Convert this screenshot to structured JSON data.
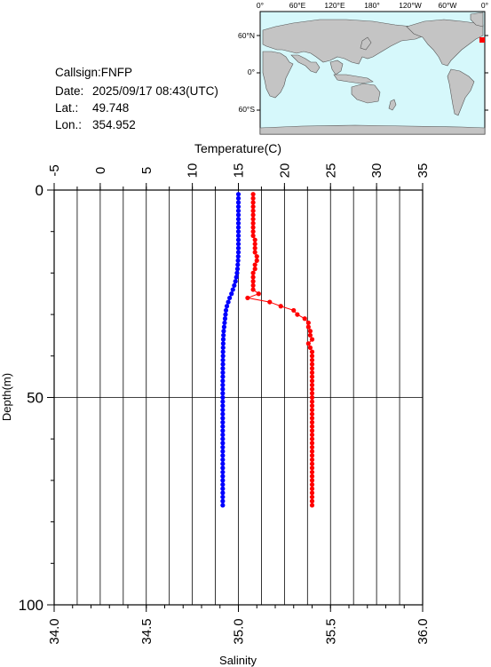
{
  "station": {
    "callsign_label": "Callsign:",
    "callsign": "FNFP",
    "date_label": "Date:",
    "date": "2025/09/17 08:43(UTC)",
    "lat_label": "Lat.:",
    "lat": "49.748",
    "lon_label": "Lon.:",
    "lon": "354.952"
  },
  "map": {
    "top_ticks": [
      "0°",
      "60°E",
      "120°E",
      "180°",
      "120°W",
      "60°W",
      "0°"
    ],
    "lat_ticks": [
      "60°N",
      "0°",
      "60°S"
    ],
    "ocean_color": "#d6f8fb",
    "land_color": "#c4c4c4",
    "marker_color": "#ff0000"
  },
  "chart_data": {
    "type": "line",
    "top_axis_label": "Temperature(C)",
    "temperature_ticks": [
      "-5",
      "0",
      "5",
      "10",
      "15",
      "20",
      "25",
      "30",
      "35"
    ],
    "temperature_range": [
      -5,
      35
    ],
    "bottom_axis_label": "Salinity",
    "salinity_ticks": [
      "34.0",
      "34.5",
      "35.0",
      "35.5",
      "36.0"
    ],
    "salinity_range": [
      34.0,
      36.0
    ],
    "ylabel": "Depth(m)",
    "depth_ticks": [
      "0",
      "50",
      "100"
    ],
    "depth_range": [
      0,
      100
    ],
    "grid": true,
    "series": [
      {
        "quantity": "temperature",
        "color": "#0000ff",
        "depth": [
          1,
          2,
          3,
          4,
          5,
          6,
          7,
          8,
          9,
          10,
          11,
          12,
          13,
          14,
          15,
          16,
          17,
          18,
          19,
          20,
          21,
          22,
          23,
          24,
          25,
          26,
          27,
          28,
          29,
          30,
          31,
          32,
          33,
          34,
          35,
          36,
          37,
          38,
          39,
          40,
          41,
          42,
          43,
          44,
          45,
          46,
          47,
          48,
          49,
          50,
          51,
          52,
          53,
          54,
          55,
          56,
          57,
          58,
          59,
          60,
          61,
          62,
          63,
          64,
          65,
          66,
          67,
          68,
          69,
          70,
          71,
          72,
          73,
          74,
          75,
          76
        ],
        "values": [
          15.0,
          15.0,
          15.0,
          15.0,
          15.0,
          15.0,
          15.0,
          15.0,
          15.0,
          15.0,
          15.0,
          15.0,
          15.0,
          15.0,
          15.0,
          14.98,
          14.96,
          14.93,
          14.9,
          14.85,
          14.78,
          14.68,
          14.55,
          14.4,
          14.25,
          14.05,
          13.9,
          13.75,
          13.65,
          13.6,
          13.55,
          13.5,
          13.45,
          13.4,
          13.38,
          13.36,
          13.35,
          13.34,
          13.33,
          13.33,
          13.32,
          13.32,
          13.31,
          13.31,
          13.31,
          13.3,
          13.3,
          13.3,
          13.3,
          13.3,
          13.3,
          13.3,
          13.3,
          13.3,
          13.3,
          13.3,
          13.3,
          13.3,
          13.3,
          13.3,
          13.3,
          13.3,
          13.3,
          13.3,
          13.3,
          13.3,
          13.3,
          13.3,
          13.3,
          13.3,
          13.3,
          13.3,
          13.3,
          13.3,
          13.3,
          13.3
        ]
      },
      {
        "quantity": "salinity",
        "color": "#ff0000",
        "depth": [
          1,
          2,
          3,
          4,
          5,
          6,
          7,
          8,
          9,
          10,
          11,
          12,
          13,
          14,
          15,
          16,
          17,
          18,
          19,
          20,
          21,
          22,
          23,
          24,
          25,
          26,
          27,
          28,
          29,
          30,
          31,
          32,
          33,
          34,
          35,
          36,
          37,
          38,
          39,
          40,
          41,
          42,
          43,
          44,
          45,
          46,
          47,
          48,
          49,
          50,
          51,
          52,
          53,
          54,
          55,
          56,
          57,
          58,
          59,
          60,
          61,
          62,
          63,
          64,
          65,
          66,
          67,
          68,
          69,
          70,
          71,
          72,
          73,
          74,
          75,
          76
        ],
        "values": [
          35.08,
          35.08,
          35.08,
          35.08,
          35.08,
          35.08,
          35.08,
          35.08,
          35.08,
          35.08,
          35.08,
          35.09,
          35.09,
          35.09,
          35.09,
          35.1,
          35.1,
          35.09,
          35.09,
          35.08,
          35.08,
          35.08,
          35.08,
          35.08,
          35.11,
          35.05,
          35.17,
          35.23,
          35.3,
          35.32,
          35.36,
          35.38,
          35.38,
          35.39,
          35.39,
          35.4,
          35.38,
          35.39,
          35.4,
          35.4,
          35.4,
          35.4,
          35.4,
          35.4,
          35.4,
          35.4,
          35.4,
          35.4,
          35.4,
          35.4,
          35.4,
          35.4,
          35.4,
          35.4,
          35.4,
          35.4,
          35.4,
          35.4,
          35.4,
          35.4,
          35.4,
          35.4,
          35.4,
          35.4,
          35.4,
          35.4,
          35.4,
          35.4,
          35.4,
          35.4,
          35.4,
          35.4,
          35.4,
          35.4,
          35.4,
          35.4
        ]
      }
    ]
  }
}
